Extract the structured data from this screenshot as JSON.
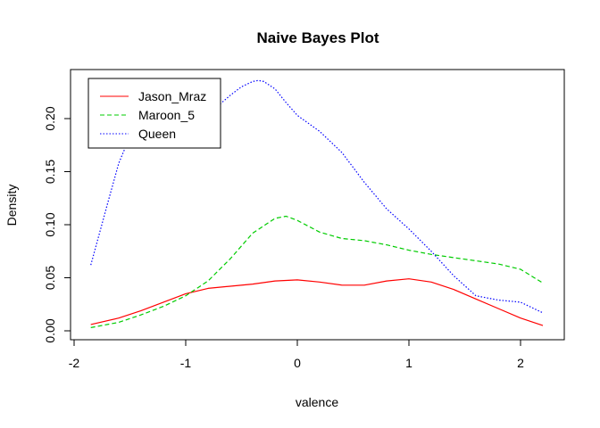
{
  "chart_data": {
    "type": "line",
    "title": "Naive Bayes Plot",
    "xlabel": "valence",
    "ylabel": "Density",
    "xlim": [
      -2,
      2.3
    ],
    "ylim": [
      0,
      0.24
    ],
    "x_ticks": [
      "-2",
      "-1",
      "0",
      "1",
      "2"
    ],
    "x_tick_values": [
      -2,
      -1,
      0,
      1,
      2
    ],
    "y_ticks": [
      "0.00",
      "0.05",
      "0.10",
      "0.15",
      "0.20"
    ],
    "y_tick_values": [
      0.0,
      0.05,
      0.1,
      0.15,
      0.2
    ],
    "legend_position": "top-left",
    "grid": false,
    "series": [
      {
        "name": "Jason_Mraz",
        "color": "#ff0000",
        "dash": "solid",
        "x": [
          -1.85,
          -1.6,
          -1.4,
          -1.2,
          -1.0,
          -0.8,
          -0.6,
          -0.4,
          -0.2,
          0.0,
          0.2,
          0.4,
          0.6,
          0.8,
          1.0,
          1.2,
          1.4,
          1.6,
          1.8,
          2.0,
          2.2
        ],
        "y": [
          0.006,
          0.012,
          0.019,
          0.027,
          0.035,
          0.04,
          0.042,
          0.044,
          0.047,
          0.048,
          0.046,
          0.043,
          0.043,
          0.047,
          0.049,
          0.046,
          0.039,
          0.03,
          0.021,
          0.012,
          0.005
        ]
      },
      {
        "name": "Maroon_5",
        "color": "#00cc00",
        "dash": "dashed",
        "x": [
          -1.85,
          -1.6,
          -1.4,
          -1.2,
          -1.0,
          -0.8,
          -0.6,
          -0.4,
          -0.2,
          -0.1,
          0.0,
          0.2,
          0.4,
          0.6,
          0.8,
          1.0,
          1.2,
          1.4,
          1.6,
          1.8,
          2.0,
          2.2
        ],
        "y": [
          0.003,
          0.008,
          0.015,
          0.023,
          0.033,
          0.047,
          0.068,
          0.092,
          0.106,
          0.108,
          0.104,
          0.093,
          0.087,
          0.085,
          0.081,
          0.076,
          0.072,
          0.069,
          0.066,
          0.063,
          0.058,
          0.045
        ]
      },
      {
        "name": "Queen",
        "color": "#0000ff",
        "dash": "dotted",
        "x": [
          -1.85,
          -1.7,
          -1.6,
          -1.5,
          -1.4,
          -1.3,
          -1.2,
          -1.1,
          -1.0,
          -0.9,
          -0.8,
          -0.7,
          -0.6,
          -0.5,
          -0.4,
          -0.35,
          -0.3,
          -0.2,
          -0.1,
          0.0,
          0.2,
          0.4,
          0.6,
          0.8,
          1.0,
          1.2,
          1.4,
          1.6,
          1.8,
          2.0,
          2.2
        ],
        "y": [
          0.062,
          0.12,
          0.158,
          0.183,
          0.19,
          0.19,
          0.188,
          0.19,
          0.193,
          0.198,
          0.205,
          0.213,
          0.222,
          0.23,
          0.235,
          0.236,
          0.235,
          0.228,
          0.215,
          0.203,
          0.188,
          0.168,
          0.14,
          0.115,
          0.096,
          0.075,
          0.052,
          0.033,
          0.029,
          0.027,
          0.017
        ]
      }
    ]
  }
}
